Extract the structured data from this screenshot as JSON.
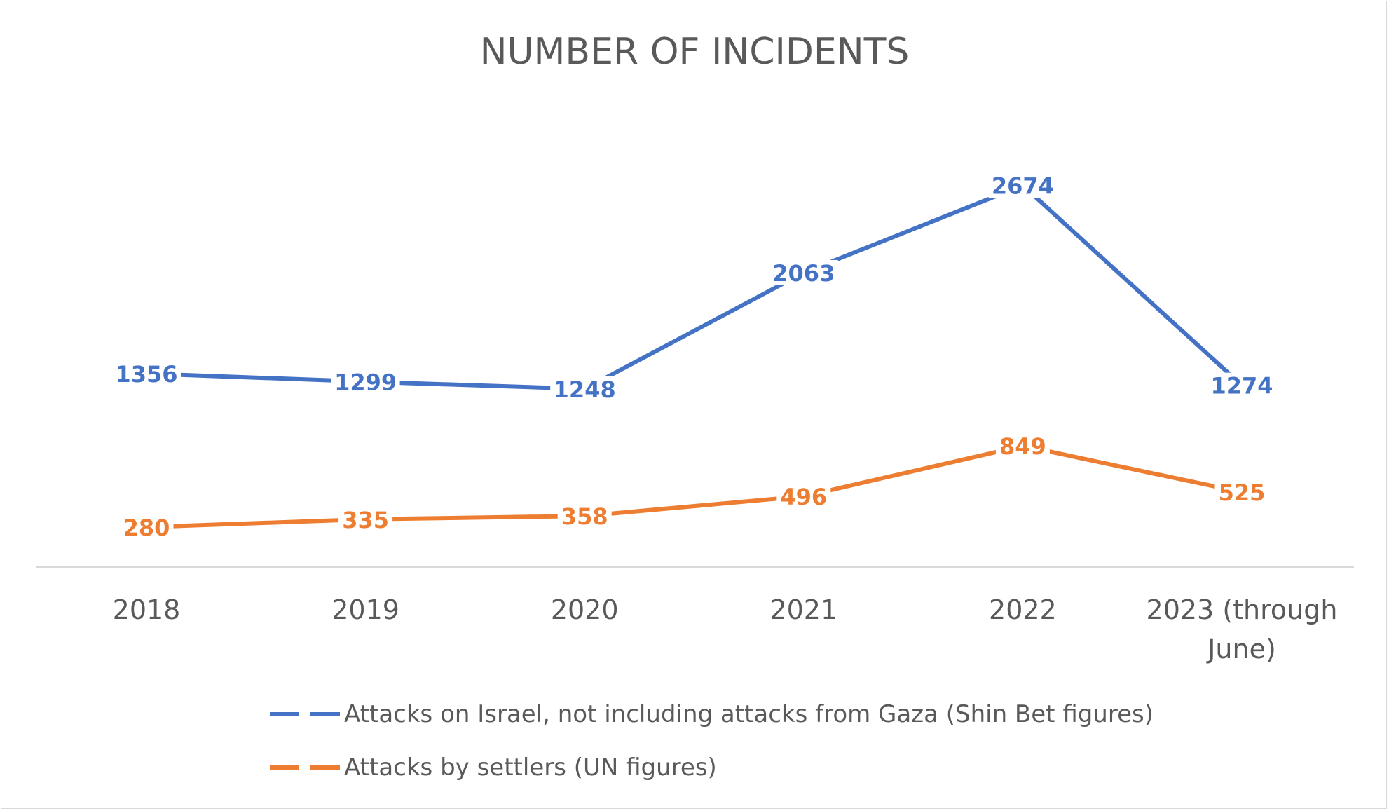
{
  "chart_data": {
    "type": "line",
    "title": "NUMBER OF INCIDENTS",
    "categories": [
      "2018",
      "2019",
      "2020",
      "2021",
      "2022",
      "2023 (through June)"
    ],
    "series": [
      {
        "name": "Attacks on Israel, not including attacks from Gaza (Shin Bet figures)",
        "color": "#4472c4",
        "values": [
          1356,
          1299,
          1248,
          2063,
          2674,
          1274
        ]
      },
      {
        "name": "Attacks by settlers (UN figures)",
        "color": "#ed7d31",
        "values": [
          280,
          335,
          358,
          496,
          849,
          525
        ]
      }
    ],
    "data_labels": true,
    "grid": false,
    "legend_position": "bottom",
    "axis_color": "#d9d9d9"
  }
}
